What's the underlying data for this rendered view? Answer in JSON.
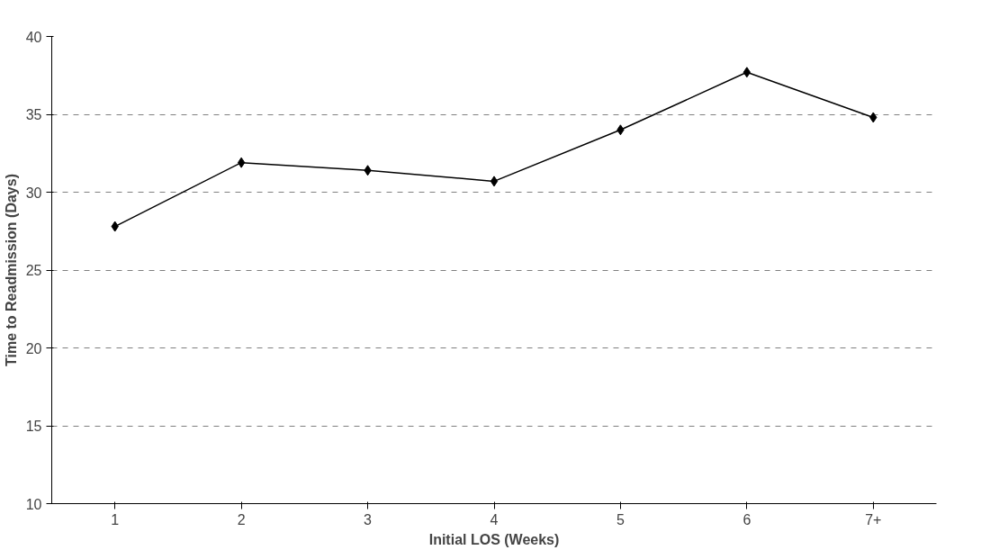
{
  "chart_data": {
    "type": "line",
    "xlabel": "Initial LOS (Weeks)",
    "ylabel": "Time to Readmission (Days)",
    "categories": [
      "1",
      "2",
      "3",
      "4",
      "5",
      "6",
      "7+"
    ],
    "series": [
      {
        "color": "#000000",
        "values": [
          27.8,
          31.9,
          31.4,
          30.7,
          34.0,
          37.7,
          34.8
        ]
      }
    ],
    "ylim": [
      10,
      40
    ],
    "yticks": [
      10,
      15,
      20,
      25,
      30,
      35,
      40
    ],
    "grid": "y",
    "marker": "diamond",
    "line_style": "solid"
  }
}
